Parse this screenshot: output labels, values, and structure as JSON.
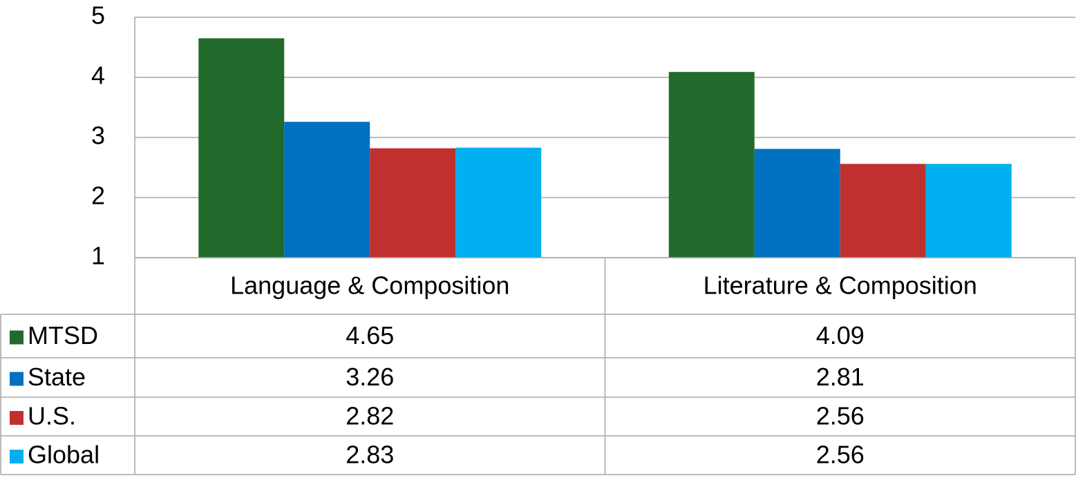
{
  "chart_data": {
    "type": "bar",
    "categories": [
      "Language & Composition",
      "Literature & Composition"
    ],
    "series": [
      {
        "name": "MTSD",
        "color": "#226a2c",
        "values": [
          4.65,
          4.09
        ]
      },
      {
        "name": "State",
        "color": "#0070c0",
        "values": [
          3.26,
          2.81
        ]
      },
      {
        "name": "U.S.",
        "color": "#c0302f",
        "values": [
          2.82,
          2.56
        ]
      },
      {
        "name": "Global",
        "color": "#00b0f0",
        "values": [
          2.83,
          2.56
        ]
      }
    ],
    "ylim": [
      1,
      5
    ],
    "yticks": [
      1,
      2,
      3,
      4,
      5
    ],
    "grid": true,
    "data_table": true
  }
}
